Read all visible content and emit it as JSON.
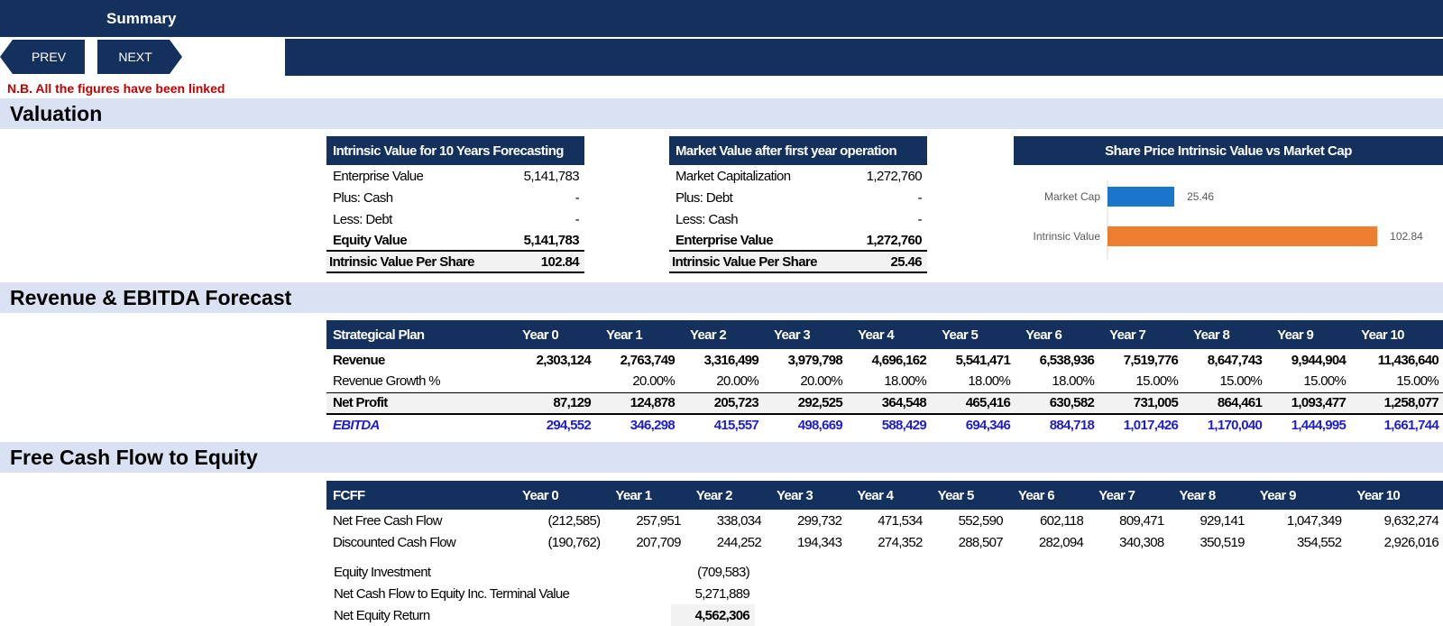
{
  "header": {
    "title": "Summary",
    "prev_label": "PREV",
    "next_label": "NEXT"
  },
  "note": "N.B. All the figures have been linked",
  "sections": {
    "valuation": "Valuation",
    "revenue": "Revenue & EBITDA Forecast",
    "fcfe": "Free Cash Flow to Equity"
  },
  "intrinsic": {
    "title": "Intrinsic Value for 10 Years Forecasting",
    "rows": [
      {
        "label": "Enterprise Value",
        "value": "5,141,783"
      },
      {
        "label": "Plus: Cash",
        "value": "-"
      },
      {
        "label": "Less: Debt",
        "value": "-"
      },
      {
        "label": "Equity Value",
        "value": "5,141,783"
      }
    ],
    "total_label": "Intrinsic Value Per Share",
    "total_value": "102.84"
  },
  "market": {
    "title": "Market Value after first year operation",
    "rows": [
      {
        "label": "Market Capitalization",
        "value": "1,272,760"
      },
      {
        "label": "Plus: Debt",
        "value": "-"
      },
      {
        "label": "Less: Cash",
        "value": "-"
      },
      {
        "label": "Enterprise Value",
        "value": "1,272,760"
      }
    ],
    "total_label": "Intrinsic Value Per Share",
    "total_value": "25.46"
  },
  "chart_data": {
    "type": "bar",
    "orientation": "horizontal",
    "title": "Share Price Intrinsic Value vs Market Cap",
    "categories": [
      "Market Cap",
      "Intrinsic Value"
    ],
    "values": [
      25.46,
      102.84
    ],
    "value_labels": [
      "25.46",
      "102.84"
    ],
    "colors": [
      "#1b75c9",
      "#ed7d31"
    ],
    "xlim": [
      0,
      110
    ],
    "grid": false,
    "legend": "none"
  },
  "revenue_table": {
    "header_label": "Strategical Plan",
    "years": [
      "Year 0",
      "Year 1",
      "Year 2",
      "Year 3",
      "Year 4",
      "Year 5",
      "Year 6",
      "Year 7",
      "Year 8",
      "Year 9",
      "Year 10"
    ],
    "rows": [
      {
        "label": "Revenue",
        "values": [
          "2,303,124",
          "2,763,749",
          "3,316,499",
          "3,979,798",
          "4,696,162",
          "5,541,471",
          "6,538,936",
          "7,519,776",
          "8,647,743",
          "9,944,904",
          "11,436,640"
        ]
      },
      {
        "label": "Revenue Growth %",
        "values": [
          "",
          "20.00%",
          "20.00%",
          "20.00%",
          "18.00%",
          "18.00%",
          "18.00%",
          "15.00%",
          "15.00%",
          "15.00%",
          "15.00%"
        ]
      },
      {
        "label": "Net Profit",
        "values": [
          "87,129",
          "124,878",
          "205,723",
          "292,525",
          "364,548",
          "465,416",
          "630,582",
          "731,005",
          "864,461",
          "1,093,477",
          "1,258,077"
        ]
      },
      {
        "label": "EBITDA",
        "values": [
          "294,552",
          "346,298",
          "415,557",
          "498,669",
          "588,429",
          "694,346",
          "884,718",
          "1,017,426",
          "1,170,040",
          "1,444,995",
          "1,661,744"
        ]
      }
    ]
  },
  "fcff_table": {
    "header_label": "FCFF",
    "years": [
      "Year 0",
      "Year 1",
      "Year 2",
      "Year 3",
      "Year 4",
      "Year 5",
      "Year 6",
      "Year 7",
      "Year 8",
      "Year 9",
      "Year 10"
    ],
    "rows": [
      {
        "label": "Net Free Cash Flow",
        "values": [
          "(212,585)",
          "257,951",
          "338,034",
          "299,732",
          "471,534",
          "552,590",
          "602,118",
          "809,471",
          "929,141",
          "1,047,349",
          "9,632,274"
        ]
      },
      {
        "label": "Discounted Cash Flow",
        "values": [
          "(190,762)",
          "207,709",
          "244,252",
          "194,343",
          "274,352",
          "288,507",
          "282,094",
          "340,308",
          "350,519",
          "354,552",
          "2,926,016"
        ]
      }
    ]
  },
  "equity": {
    "rows": [
      {
        "label": "Equity Investment",
        "value": "(709,583)"
      },
      {
        "label": "Net Cash Flow to Equity Inc. Terminal Value",
        "value": "5,271,889"
      },
      {
        "label": "Net Equity Return",
        "value": "4,562,306"
      }
    ]
  }
}
